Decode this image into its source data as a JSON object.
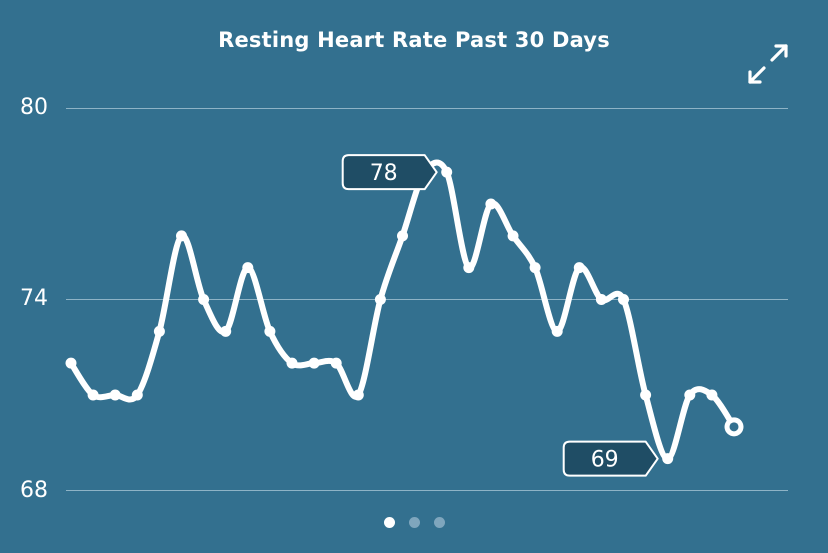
{
  "header": {
    "title": "Resting Heart Rate Past 30 Days",
    "expand_icon": "expand-arrows-icon"
  },
  "colors": {
    "background": "#33708f",
    "line": "#ffffff",
    "gridline": "#8eb3c6",
    "callout_fill": "#1f4d65"
  },
  "pager": {
    "pages": 3,
    "active_index": 0
  },
  "chart_data": {
    "type": "line",
    "title": "Resting Heart Rate Past 30 Days",
    "xlabel": "",
    "ylabel": "",
    "x": [
      1,
      2,
      3,
      4,
      5,
      6,
      7,
      8,
      9,
      10,
      11,
      12,
      13,
      14,
      15,
      16,
      17,
      18,
      19,
      20,
      21,
      22,
      23,
      24,
      25,
      26,
      27,
      28,
      29,
      30,
      31
    ],
    "values": [
      72,
      71,
      71,
      71,
      73,
      76,
      74,
      73,
      75,
      73,
      72,
      72,
      72,
      71,
      74,
      76,
      78,
      78,
      75,
      77,
      76,
      75,
      73,
      75,
      74,
      74,
      71,
      69,
      71,
      71,
      70
    ],
    "ylim": [
      68,
      80
    ],
    "yticks": [
      68,
      74,
      80
    ],
    "ytick_labels": [
      "68",
      "74",
      "80"
    ],
    "grid": "horizontal",
    "annotations": [
      {
        "label": "78",
        "point_index": 17,
        "kind": "max"
      },
      {
        "label": "69",
        "point_index": 27,
        "kind": "min"
      }
    ],
    "current_point_index": 30
  }
}
